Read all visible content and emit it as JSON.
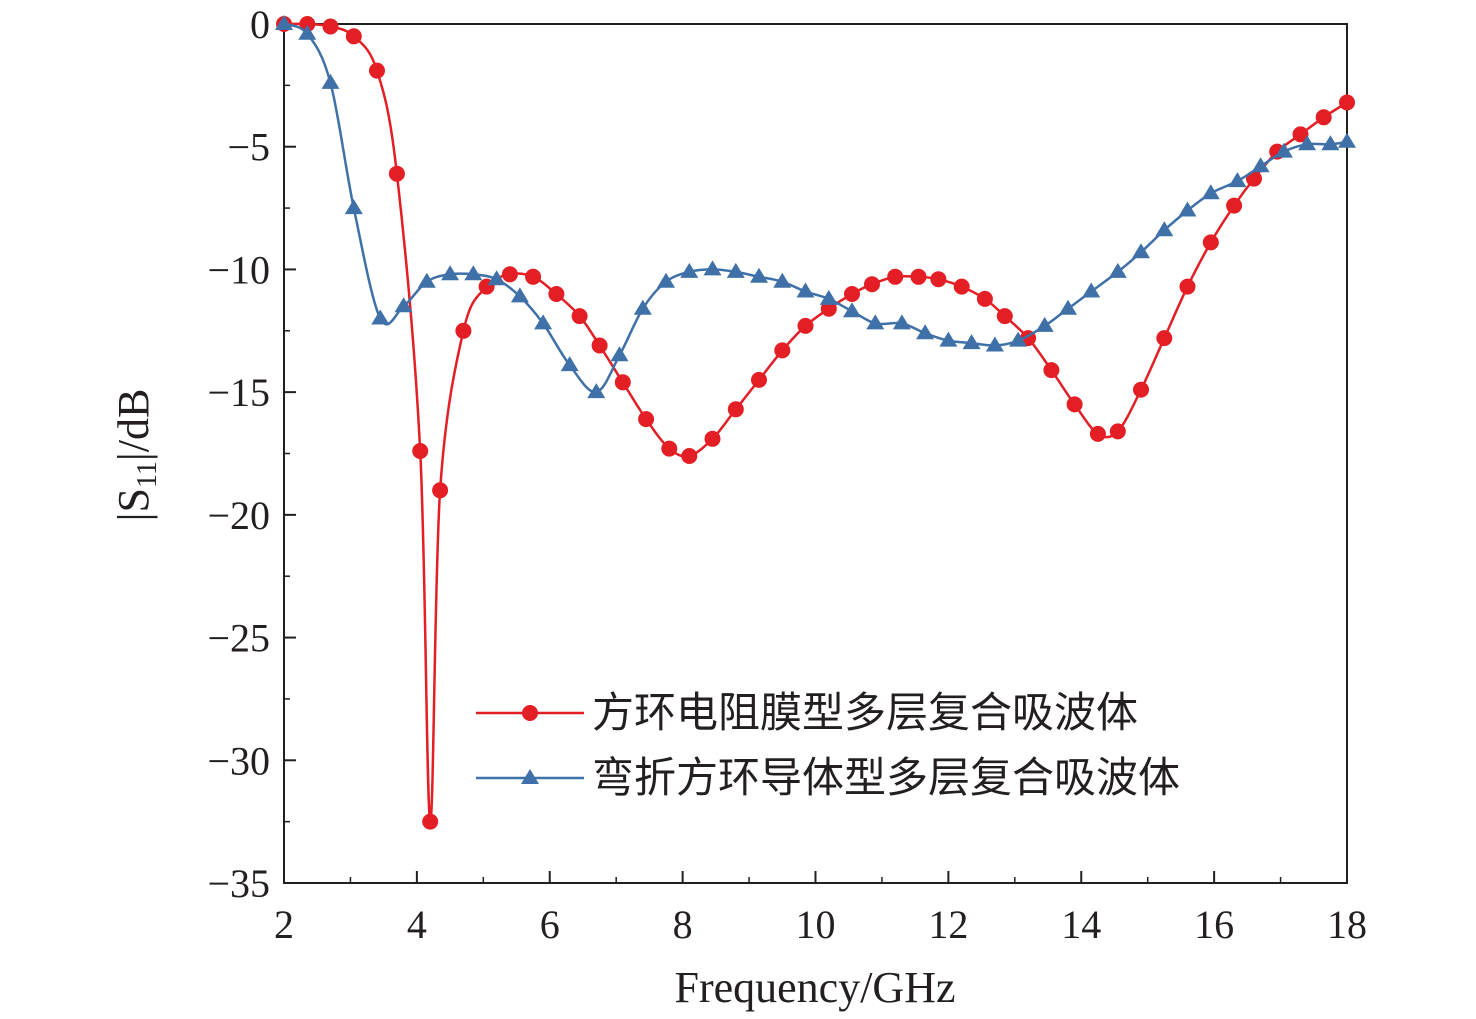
{
  "chart_data": {
    "type": "line",
    "title": "",
    "xlabel": "Frequency/GHz",
    "ylabel": {
      "prefix": "|S",
      "subscript": "11",
      "suffix": "|/dB"
    },
    "xlim": [
      2,
      18
    ],
    "ylim": [
      -35,
      0
    ],
    "xticks": [
      2,
      4,
      6,
      8,
      10,
      12,
      14,
      16,
      18
    ],
    "yticks": [
      0,
      -5,
      -10,
      -15,
      -20,
      -25,
      -30,
      -35
    ],
    "ytick_labels": [
      "0",
      "−5",
      "−10",
      "−15",
      "−20",
      "−25",
      "−30",
      "−35"
    ],
    "grid": false,
    "legend_position": "bottom-right",
    "series": [
      {
        "name": "方环电阻膜型多层复合吸波体",
        "color": "#e31e24",
        "marker": "circle",
        "x": [
          2.0,
          2.35,
          2.7,
          3.05,
          3.4,
          3.7,
          4.05,
          4.2,
          4.35,
          4.7,
          5.05,
          5.4,
          5.75,
          6.1,
          6.45,
          6.75,
          7.1,
          7.45,
          7.8,
          8.1,
          8.45,
          8.8,
          9.15,
          9.5,
          9.85,
          10.2,
          10.55,
          10.85,
          11.2,
          11.55,
          11.85,
          12.2,
          12.55,
          12.85,
          13.2,
          13.55,
          13.9,
          14.25,
          14.55,
          14.9,
          15.25,
          15.6,
          15.95,
          16.3,
          16.6,
          16.95,
          17.3,
          17.65,
          18.0
        ],
        "y": [
          0.0,
          0.0,
          -0.1,
          -0.5,
          -1.9,
          -6.1,
          -17.4,
          -32.5,
          -19.0,
          -12.5,
          -10.7,
          -10.2,
          -10.3,
          -11.0,
          -11.9,
          -13.1,
          -14.6,
          -16.1,
          -17.3,
          -17.6,
          -16.9,
          -15.7,
          -14.5,
          -13.3,
          -12.3,
          -11.6,
          -11.0,
          -10.6,
          -10.3,
          -10.3,
          -10.4,
          -10.7,
          -11.2,
          -11.9,
          -12.8,
          -14.1,
          -15.5,
          -16.7,
          -16.6,
          -14.9,
          -12.8,
          -10.7,
          -8.9,
          -7.4,
          -6.3,
          -5.2,
          -4.5,
          -3.8,
          -3.2
        ]
      },
      {
        "name": "弯折方环导体型多层复合吸波体",
        "color": "#3f71a8",
        "marker": "triangle",
        "x": [
          2.0,
          2.35,
          2.7,
          3.05,
          3.45,
          3.8,
          4.15,
          4.5,
          4.85,
          5.2,
          5.55,
          5.9,
          6.3,
          6.7,
          7.05,
          7.4,
          7.75,
          8.1,
          8.45,
          8.8,
          9.15,
          9.5,
          9.85,
          10.2,
          10.55,
          10.9,
          11.3,
          11.65,
          12.0,
          12.35,
          12.7,
          13.05,
          13.45,
          13.8,
          14.15,
          14.55,
          14.9,
          15.25,
          15.6,
          15.95,
          16.35,
          16.7,
          17.05,
          17.4,
          17.75,
          18.0
        ],
        "y": [
          0.0,
          -0.4,
          -2.4,
          -7.5,
          -12.0,
          -11.5,
          -10.5,
          -10.2,
          -10.2,
          -10.4,
          -11.1,
          -12.2,
          -13.9,
          -15.0,
          -13.5,
          -11.6,
          -10.5,
          -10.1,
          -10.0,
          -10.1,
          -10.3,
          -10.5,
          -10.9,
          -11.2,
          -11.7,
          -12.2,
          -12.2,
          -12.6,
          -12.9,
          -13.0,
          -13.1,
          -12.9,
          -12.3,
          -11.6,
          -10.9,
          -10.1,
          -9.3,
          -8.4,
          -7.6,
          -6.9,
          -6.4,
          -5.8,
          -5.2,
          -4.9,
          -4.9,
          -4.8
        ]
      }
    ]
  }
}
